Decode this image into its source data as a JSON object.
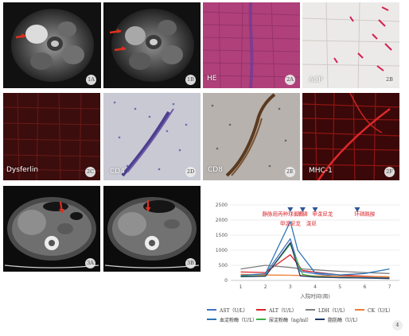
{
  "panels": [
    {
      "key": "1A",
      "label": "",
      "letter": "1A"
    },
    {
      "key": "1B",
      "label": "",
      "letter": "1B"
    },
    {
      "key": "2A",
      "label": "HE",
      "letter": "2A"
    },
    {
      "key": "2B",
      "label": "ACP",
      "letter": "2B"
    },
    {
      "key": "2C",
      "label": "Dysferlin",
      "letter": "2C"
    },
    {
      "key": "2D",
      "label": "CD4",
      "letter": "2D"
    },
    {
      "key": "2E",
      "label": "CD8",
      "letter": "2E"
    },
    {
      "key": "2F",
      "label": "MHC-1",
      "letter": "2F"
    },
    {
      "key": "3A",
      "label": "",
      "letter": "3A"
    },
    {
      "key": "3B",
      "label": "",
      "letter": "3B"
    }
  ],
  "figure4": {
    "letter": "4"
  },
  "chart_data": {
    "type": "line",
    "xlabel": "入院时间(周)",
    "ylabel": "",
    "x": [
      1,
      2,
      3,
      4,
      5,
      6,
      7
    ],
    "xticks": [
      "1",
      "2",
      "3",
      "4",
      "5",
      "6",
      "7"
    ],
    "ylim": [
      0,
      2500
    ],
    "yticks": [
      "0",
      "500",
      "1000",
      "1500",
      "2000",
      "2500"
    ],
    "grid": true,
    "legend_position": "bottom",
    "series": [
      {
        "name": "AST（U/L）",
        "color": "#4472c4",
        "points": [
          [
            1,
            180
          ],
          [
            2,
            210
          ],
          [
            3,
            1380
          ],
          [
            3.4,
            300
          ],
          [
            4,
            220
          ],
          [
            5,
            130
          ],
          [
            6,
            110
          ],
          [
            7,
            90
          ]
        ]
      },
      {
        "name": "ALT（U/L）",
        "color": "#d9262b",
        "points": [
          [
            1,
            280
          ],
          [
            2,
            260
          ],
          [
            3,
            850
          ],
          [
            3.5,
            330
          ],
          [
            4,
            270
          ],
          [
            5,
            180
          ],
          [
            6,
            140
          ],
          [
            7,
            110
          ]
        ]
      },
      {
        "name": "LDH（U/L）",
        "color": "#7f7f7f",
        "points": [
          [
            1,
            380
          ],
          [
            2,
            500
          ],
          [
            3,
            430
          ],
          [
            3.5,
            380
          ],
          [
            4,
            350
          ],
          [
            5,
            300
          ],
          [
            6,
            260
          ],
          [
            7,
            230
          ]
        ]
      },
      {
        "name": "CK（U/L）",
        "color": "#ed7d31",
        "points": [
          [
            1,
            200
          ],
          [
            2,
            180
          ],
          [
            3,
            170
          ],
          [
            4,
            150
          ],
          [
            5,
            140
          ],
          [
            6,
            130
          ],
          [
            7,
            120
          ]
        ]
      },
      {
        "name": "血淀粉酶（U/L）",
        "color": "#2e75b6",
        "points": [
          [
            1,
            160
          ],
          [
            2,
            220
          ],
          [
            3,
            1950
          ],
          [
            3.3,
            1000
          ],
          [
            4,
            250
          ],
          [
            5,
            180
          ],
          [
            6,
            230
          ],
          [
            7,
            380
          ]
        ]
      },
      {
        "name": "尿淀粉酶（ng/ml）",
        "color": "#3cb043",
        "points": [
          [
            1,
            140
          ],
          [
            2,
            150
          ],
          [
            3,
            1200
          ],
          [
            3.5,
            200
          ],
          [
            4,
            130
          ],
          [
            5,
            90
          ],
          [
            6,
            80
          ],
          [
            7,
            70
          ]
        ]
      },
      {
        "name": "脂肪酶（U/L）",
        "color": "#1f3864",
        "points": [
          [
            1,
            120
          ],
          [
            2,
            140
          ],
          [
            3,
            1250
          ],
          [
            3.4,
            150
          ],
          [
            4,
            110
          ],
          [
            5,
            90
          ],
          [
            6,
            80
          ],
          [
            7,
            60
          ]
        ]
      }
    ],
    "annotations": [
      {
        "text": "静脉用丙种球蛋白",
        "x": 2.7,
        "y": 2200
      },
      {
        "text": "甲泼尼龙",
        "x": 3.0,
        "y": 1880
      },
      {
        "text": "环磷",
        "x": 3.5,
        "y": 2200
      },
      {
        "text": "甲泼尼龙",
        "x": 4.3,
        "y": 2200
      },
      {
        "text": "泼尼",
        "x": 3.85,
        "y": 1880
      },
      {
        "text": "环磷酰胺",
        "x": 6.0,
        "y": 2200
      }
    ],
    "arrow_markers_x": [
      3.0,
      3.5,
      4.0,
      5.7
    ]
  }
}
